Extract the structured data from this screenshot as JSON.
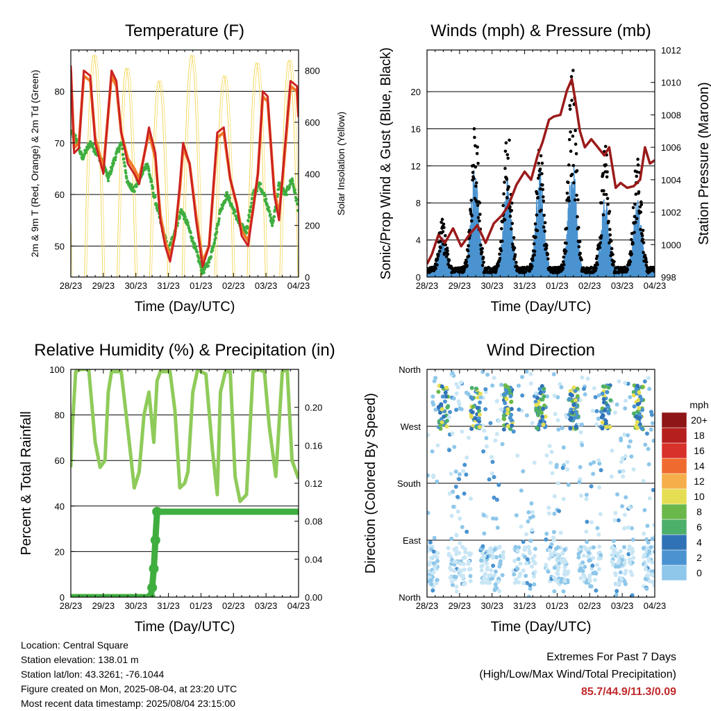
{
  "x_axis": {
    "label": "Time (Day/UTC)",
    "ticks": [
      "28/23",
      "29/23",
      "30/23",
      "31/23",
      "01/23",
      "02/23",
      "03/23",
      "04/23"
    ]
  },
  "colors": {
    "temp_2m": "#cc2222",
    "temp_9m": "#f07a28",
    "dewpoint": "#3fae3f",
    "solar": "#f5d75a",
    "wind_speed": "#4a93d0",
    "wind_gust": "#000000",
    "pressure": "#9b1a1a",
    "rh": "#8fcb5a",
    "precip": "#3fae3f",
    "extremes": "#c0282a"
  },
  "chart_data": [
    {
      "id": "temperature",
      "type": "line",
      "title": "Temperature (F)",
      "ylabel": "2m & 9m T (Red, Orange) & 2m Td (Green)",
      "ylabel_right": "Solar Insolation (Yellow)",
      "ylim": [
        44,
        88
      ],
      "ylim_right": [
        0,
        880
      ],
      "yticks": [
        50,
        60,
        70,
        80
      ],
      "yticks_right": [
        0,
        200,
        400,
        600,
        800
      ],
      "grid": true,
      "series": [
        {
          "name": "2m T",
          "axis": "left",
          "x": [
            0,
            0.1,
            0.25,
            0.4,
            0.6,
            0.75,
            1.0,
            1.25,
            1.4,
            1.55,
            1.75,
            1.95,
            2.1,
            2.4,
            2.6,
            2.75,
            2.9,
            3.05,
            3.2,
            3.35,
            3.45,
            3.65,
            3.85,
            4.05,
            4.25,
            4.5,
            4.7,
            4.9,
            5.1,
            5.25,
            5.45,
            5.6,
            5.75,
            5.9,
            6.05,
            6.25,
            6.4,
            6.55,
            6.75,
            6.95,
            7.0
          ],
          "values": [
            85,
            68,
            69,
            84,
            83,
            70,
            64,
            84,
            82,
            72,
            66,
            64,
            62,
            73,
            68,
            55,
            50,
            47,
            52,
            62,
            70,
            66,
            55,
            46,
            50,
            72,
            73,
            63,
            58,
            52,
            50,
            57,
            64,
            80,
            79,
            60,
            55,
            67,
            82,
            81,
            75
          ]
        },
        {
          "name": "9m T",
          "axis": "left",
          "x": [
            0,
            0.1,
            0.25,
            0.4,
            0.6,
            0.75,
            1.0,
            1.25,
            1.4,
            1.55,
            1.75,
            1.95,
            2.1,
            2.4,
            2.6,
            2.75,
            2.9,
            3.05,
            3.2,
            3.35,
            3.45,
            3.65,
            3.85,
            4.05,
            4.25,
            4.5,
            4.7,
            4.9,
            5.1,
            5.25,
            5.45,
            5.6,
            5.75,
            5.9,
            6.05,
            6.25,
            6.4,
            6.55,
            6.75,
            6.95,
            7.0
          ],
          "values": [
            84,
            69,
            70,
            83,
            82,
            71,
            65,
            83,
            81,
            72,
            67,
            65,
            63,
            72,
            67,
            56,
            51,
            48,
            52,
            61,
            69,
            66,
            56,
            47,
            50,
            71,
            72,
            63,
            58,
            53,
            51,
            57,
            64,
            79,
            78,
            61,
            56,
            66,
            81,
            80,
            75
          ]
        },
        {
          "name": "2m Td",
          "axis": "left",
          "x": [
            0,
            0.15,
            0.35,
            0.6,
            0.8,
            1.0,
            1.15,
            1.35,
            1.55,
            1.75,
            1.95,
            2.1,
            2.35,
            2.55,
            2.75,
            3.0,
            3.2,
            3.4,
            3.6,
            3.8,
            4.05,
            4.25,
            4.45,
            4.6,
            4.8,
            5.0,
            5.2,
            5.4,
            5.6,
            5.8,
            6.0,
            6.2,
            6.4,
            6.6,
            6.8,
            7.0
          ],
          "values": [
            72,
            71,
            67,
            70,
            68,
            66,
            63,
            67,
            70,
            62,
            61,
            63,
            66,
            60,
            55,
            49,
            53,
            57,
            54,
            50,
            45,
            47,
            52,
            57,
            60,
            57,
            54,
            53,
            60,
            62,
            59,
            54,
            62,
            60,
            63,
            57
          ]
        },
        {
          "name": "Solar Insolation",
          "axis": "right",
          "x_step_days": 1,
          "daily_peaks": [
            830,
            860,
            810,
            760,
            860,
            780,
            830,
            840
          ]
        }
      ]
    },
    {
      "id": "winds",
      "type": "scatter",
      "title": "Winds (mph) & Pressure (mb)",
      "ylabel": "Sonic/Prop Wind & Gust (Blue, Black)",
      "ylabel_right": "Station Pressure (Maroon)",
      "ylim": [
        0,
        24.5
      ],
      "ylim_right": [
        998,
        1012
      ],
      "yticks": [
        0,
        4,
        8,
        12,
        16,
        20
      ],
      "yticks_right": [
        998,
        1000,
        1002,
        1004,
        1006,
        1008,
        1010,
        1012
      ],
      "grid": true,
      "series": [
        {
          "name": "Wind",
          "daily_peaks": [
            3,
            10,
            9,
            10,
            11,
            7,
            7,
            6
          ]
        },
        {
          "name": "Gust",
          "daily_peaks": [
            5,
            16,
            16,
            13,
            22,
            13,
            12,
            15
          ]
        },
        {
          "name": "Pressure",
          "axis": "right",
          "x": [
            0,
            0.15,
            0.35,
            0.55,
            0.8,
            1.05,
            1.3,
            1.55,
            1.8,
            2.05,
            2.3,
            2.5,
            2.75,
            3.0,
            3.2,
            3.4,
            3.55,
            3.75,
            3.9,
            4.1,
            4.3,
            4.45,
            4.55,
            4.7,
            4.85,
            5.05,
            5.25,
            5.45,
            5.6,
            5.8,
            5.95,
            6.15,
            6.35,
            6.55,
            6.7,
            6.85,
            7.0
          ],
          "values": [
            998.8,
            999.4,
            1000.6,
            1000.1,
            1001.0,
            999.9,
            1000.6,
            1001.2,
            1000.1,
            1001.3,
            1001.8,
            1002.4,
            1003.7,
            1004.5,
            1004.0,
            1005.5,
            1006.3,
            1007.7,
            1007.9,
            1008.0,
            1009.5,
            1010.2,
            1009.0,
            1007.0,
            1006.0,
            1006.5,
            1006.0,
            1005.5,
            1006.0,
            1003.5,
            1003.8,
            1003.5,
            1003.6,
            1004.0,
            1006.0,
            1005.0,
            1005.2
          ]
        }
      ]
    },
    {
      "id": "humidity",
      "type": "line",
      "title": "Relative Humidity (%) & Precipitation (in)",
      "ylabel": "Percent & Total Rainfall",
      "ylim": [
        0,
        100
      ],
      "ylim_right": [
        0,
        0.24
      ],
      "yticks": [
        0,
        20,
        40,
        60,
        80,
        100
      ],
      "yticks_right": [
        "0.00",
        "0.04",
        "0.08",
        "0.12",
        "0.16",
        "0.20"
      ],
      "yticks_right_values": [
        0,
        0.04,
        0.08,
        0.12,
        0.16,
        0.2
      ],
      "grid": true,
      "series": [
        {
          "name": "RH",
          "x": [
            0,
            0.05,
            0.15,
            0.3,
            0.55,
            0.75,
            0.9,
            1.05,
            1.15,
            1.25,
            1.35,
            1.55,
            1.75,
            1.95,
            2.1,
            2.25,
            2.4,
            2.55,
            2.65,
            2.75,
            2.9,
            3.05,
            3.2,
            3.35,
            3.5,
            3.6,
            3.75,
            3.9,
            4.0,
            4.15,
            4.35,
            4.5,
            4.6,
            4.75,
            4.9,
            5.05,
            5.2,
            5.4,
            5.6,
            5.75,
            5.95,
            6.1,
            6.3,
            6.5,
            6.65,
            6.8,
            7.0
          ],
          "values": [
            57,
            75,
            99,
            100,
            100,
            68,
            57,
            60,
            90,
            99,
            99,
            99,
            74,
            48,
            55,
            80,
            90,
            68,
            95,
            99,
            99,
            99,
            82,
            48,
            50,
            55,
            90,
            100,
            99,
            98,
            65,
            45,
            90,
            99,
            99,
            53,
            42,
            45,
            99,
            100,
            99,
            75,
            53,
            99,
            100,
            60,
            52
          ]
        },
        {
          "name": "Precipitation",
          "axis": "right",
          "x": [
            0,
            2.45,
            2.5,
            2.55,
            2.6,
            2.65,
            7.0
          ],
          "values": [
            0,
            0,
            0.01,
            0.03,
            0.06,
            0.09,
            0.09
          ]
        }
      ]
    },
    {
      "id": "direction",
      "type": "scatter",
      "title": "Wind Direction",
      "ylabel": "Direction (Colored By Speed)",
      "ylim": [
        0,
        360
      ],
      "yticks": [
        "North",
        "East",
        "South",
        "West",
        "North"
      ],
      "yticks_values": [
        0,
        90,
        180,
        270,
        360
      ],
      "grid": true,
      "colorbar": {
        "unit": "mph",
        "labels": [
          "0",
          "2",
          "4",
          "6",
          "8",
          "10",
          "12",
          "14",
          "16",
          "18",
          "20+"
        ],
        "colors": [
          "#c9e6f5",
          "#8ec7ea",
          "#4a93d0",
          "#2f72b6",
          "#4caf6a",
          "#6ab84a",
          "#e6de52",
          "#f6ae4a",
          "#ef6a2e",
          "#d8302a",
          "#b5201e",
          "#8e1616"
        ]
      }
    }
  ],
  "footer": {
    "location": "Location: Central Square",
    "elevation": "Station elevation: 138.01 m",
    "latlon": "Station lat/lon: 43.3261; -76.1044",
    "created": "Figure created on Mon, 2025-08-04, at 23:20 UTC",
    "timestamp": "Most recent data timestamp: 2025/08/04 23:15:00"
  },
  "extremes": {
    "title": "Extremes For Past 7 Days",
    "subtitle": "(High/Low/Max Wind/Total Precipitation)",
    "values": "85.7/44.9/11.3/0.09"
  }
}
